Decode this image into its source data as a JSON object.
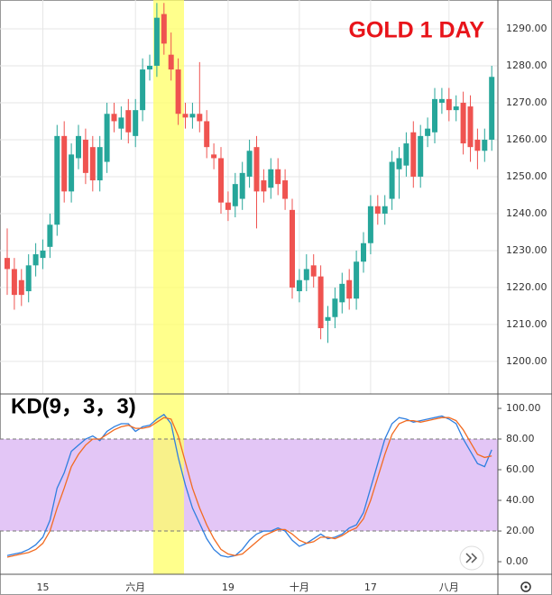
{
  "chart_data": [
    {
      "type": "candlestick",
      "title": "GOLD 1 DAY",
      "up_color": "#26a69a",
      "down_color": "#ef5350",
      "open": [
        1228,
        1225,
        1222,
        1219,
        1226,
        1228,
        1231,
        1237,
        1261,
        1246,
        1255,
        1260,
        1258,
        1249,
        1254,
        1267,
        1263,
        1268,
        1261,
        1268,
        1279,
        1280,
        1294,
        1283,
        1279,
        1267,
        1266,
        1267,
        1265,
        1256,
        1255,
        1243,
        1242,
        1244,
        1250,
        1258,
        1249,
        1247,
        1252,
        1249,
        1241,
        1219,
        1222,
        1226,
        1223,
        1211,
        1212,
        1216,
        1222,
        1217,
        1227,
        1232,
        1242,
        1240,
        1244,
        1252,
        1253,
        1262,
        1250,
        1261,
        1262,
        1270,
        1271,
        1268,
        1270,
        1269,
        1260,
        1257,
        1260
      ],
      "high": [
        1236,
        1228,
        1225,
        1229,
        1232,
        1233,
        1240,
        1264,
        1265,
        1259,
        1264,
        1263,
        1261,
        1261,
        1270,
        1270,
        1269,
        1271,
        1271,
        1282,
        1283,
        1297,
        1297,
        1289,
        1282,
        1270,
        1270,
        1281,
        1268,
        1259,
        1258,
        1246,
        1251,
        1254,
        1260,
        1261,
        1252,
        1255,
        1255,
        1252,
        1244,
        1225,
        1229,
        1229,
        1226,
        1215,
        1220,
        1224,
        1225,
        1230,
        1235,
        1245,
        1245,
        1245,
        1257,
        1258,
        1262,
        1265,
        1264,
        1266,
        1274,
        1274,
        1274,
        1272,
        1273,
        1272,
        1263,
        1263,
        1280
      ],
      "low": [
        1218,
        1214,
        1215,
        1216,
        1223,
        1225,
        1228,
        1234,
        1243,
        1243,
        1252,
        1248,
        1246,
        1246,
        1251,
        1262,
        1260,
        1259,
        1258,
        1265,
        1276,
        1277,
        1283,
        1276,
        1264,
        1263,
        1263,
        1262,
        1255,
        1252,
        1240,
        1238,
        1239,
        1241,
        1247,
        1236,
        1243,
        1244,
        1245,
        1241,
        1217,
        1216,
        1219,
        1220,
        1206,
        1205,
        1209,
        1213,
        1214,
        1214,
        1224,
        1229,
        1237,
        1237,
        1241,
        1244,
        1250,
        1247,
        1247,
        1258,
        1259,
        1267,
        1265,
        1265,
        1256,
        1254,
        1252,
        1254,
        1257
      ],
      "close": [
        1225,
        1218,
        1218,
        1226,
        1229,
        1230,
        1237,
        1261,
        1246,
        1256,
        1261,
        1251,
        1249,
        1258,
        1267,
        1265,
        1266,
        1262,
        1268,
        1279,
        1280,
        1293,
        1286,
        1279,
        1267,
        1266,
        1267,
        1265,
        1258,
        1255,
        1243,
        1241,
        1248,
        1251,
        1257,
        1246,
        1246,
        1252,
        1248,
        1244,
        1220,
        1222,
        1225,
        1223,
        1209,
        1212,
        1217,
        1221,
        1217,
        1227,
        1232,
        1242,
        1240,
        1242,
        1254,
        1255,
        1259,
        1250,
        1261,
        1263,
        1271,
        1271,
        1268,
        1269,
        1259,
        1258,
        1257,
        1260,
        1277
      ],
      "ylim": [
        1191.2,
        1297.8
      ],
      "yticks": [
        {
          "value": 1200,
          "label": "1200.00"
        },
        {
          "value": 1210,
          "label": "1210.00"
        },
        {
          "value": 1220,
          "label": "1220.00"
        },
        {
          "value": 1230,
          "label": "1230.00"
        },
        {
          "value": 1240,
          "label": "1240.00"
        },
        {
          "value": 1250,
          "label": "1250.00"
        },
        {
          "value": 1260,
          "label": "1260.00"
        },
        {
          "value": 1270,
          "label": "1270.00"
        },
        {
          "value": 1280,
          "label": "1280.00"
        },
        {
          "value": 1290,
          "label": "1290.00"
        }
      ],
      "grid": true
    },
    {
      "type": "line",
      "title": "KD(9，3，3)",
      "categories": [
        null,
        null,
        null,
        null,
        null,
        "15",
        null,
        null,
        null,
        null,
        null,
        null,
        null,
        null,
        null,
        null,
        null,
        null,
        "六月",
        null,
        null,
        null,
        null,
        null,
        null,
        null,
        null,
        null,
        null,
        null,
        null,
        "19",
        null,
        null,
        null,
        null,
        null,
        null,
        null,
        null,
        null,
        "十月",
        null,
        null,
        null,
        null,
        null,
        null,
        null,
        null,
        null,
        "17",
        null,
        null,
        null,
        null,
        null,
        null,
        null,
        null,
        null,
        null,
        "八月",
        null,
        null,
        null,
        null,
        null,
        null
      ],
      "series": [
        {
          "color": "#2f7fe0",
          "values": [
            4,
            5,
            6,
            8,
            11,
            16,
            27,
            48,
            58,
            72,
            76,
            80,
            82,
            79,
            85,
            88,
            90,
            90,
            85,
            88,
            89,
            93,
            96,
            90,
            68,
            50,
            35,
            25,
            15,
            8,
            4,
            3,
            4,
            8,
            14,
            18,
            20,
            20,
            22,
            20,
            14,
            10,
            12,
            15,
            18,
            15,
            16,
            18,
            22,
            24,
            32,
            48,
            64,
            80,
            90,
            94,
            93,
            91,
            92,
            93,
            94,
            95,
            93,
            90,
            80,
            72,
            64,
            62,
            73
          ]
        },
        {
          "color": "#f26b21",
          "values": [
            3,
            4,
            5,
            6,
            8,
            12,
            20,
            35,
            48,
            62,
            70,
            76,
            80,
            80,
            83,
            86,
            88,
            89,
            87,
            87,
            88,
            91,
            94,
            93,
            82,
            65,
            48,
            35,
            24,
            15,
            8,
            5,
            4,
            5,
            9,
            13,
            17,
            19,
            21,
            21,
            18,
            14,
            12,
            13,
            16,
            16,
            15,
            17,
            20,
            22,
            28,
            40,
            55,
            70,
            83,
            90,
            92,
            92,
            91,
            92,
            93,
            94,
            94,
            92,
            86,
            78,
            70,
            68,
            69
          ]
        }
      ],
      "band": [
        20,
        80
      ],
      "band_color": "#e3c6f6",
      "ylim": [
        -8.2,
        109.4
      ],
      "yticks": [
        {
          "value": 0,
          "label": "0.00"
        },
        {
          "value": 20,
          "label": "20.00"
        },
        {
          "value": 40,
          "label": "40.00"
        },
        {
          "value": 60,
          "label": "60.00"
        },
        {
          "value": 80,
          "label": "80.00"
        },
        {
          "value": 100,
          "label": "100.00"
        }
      ]
    }
  ]
}
